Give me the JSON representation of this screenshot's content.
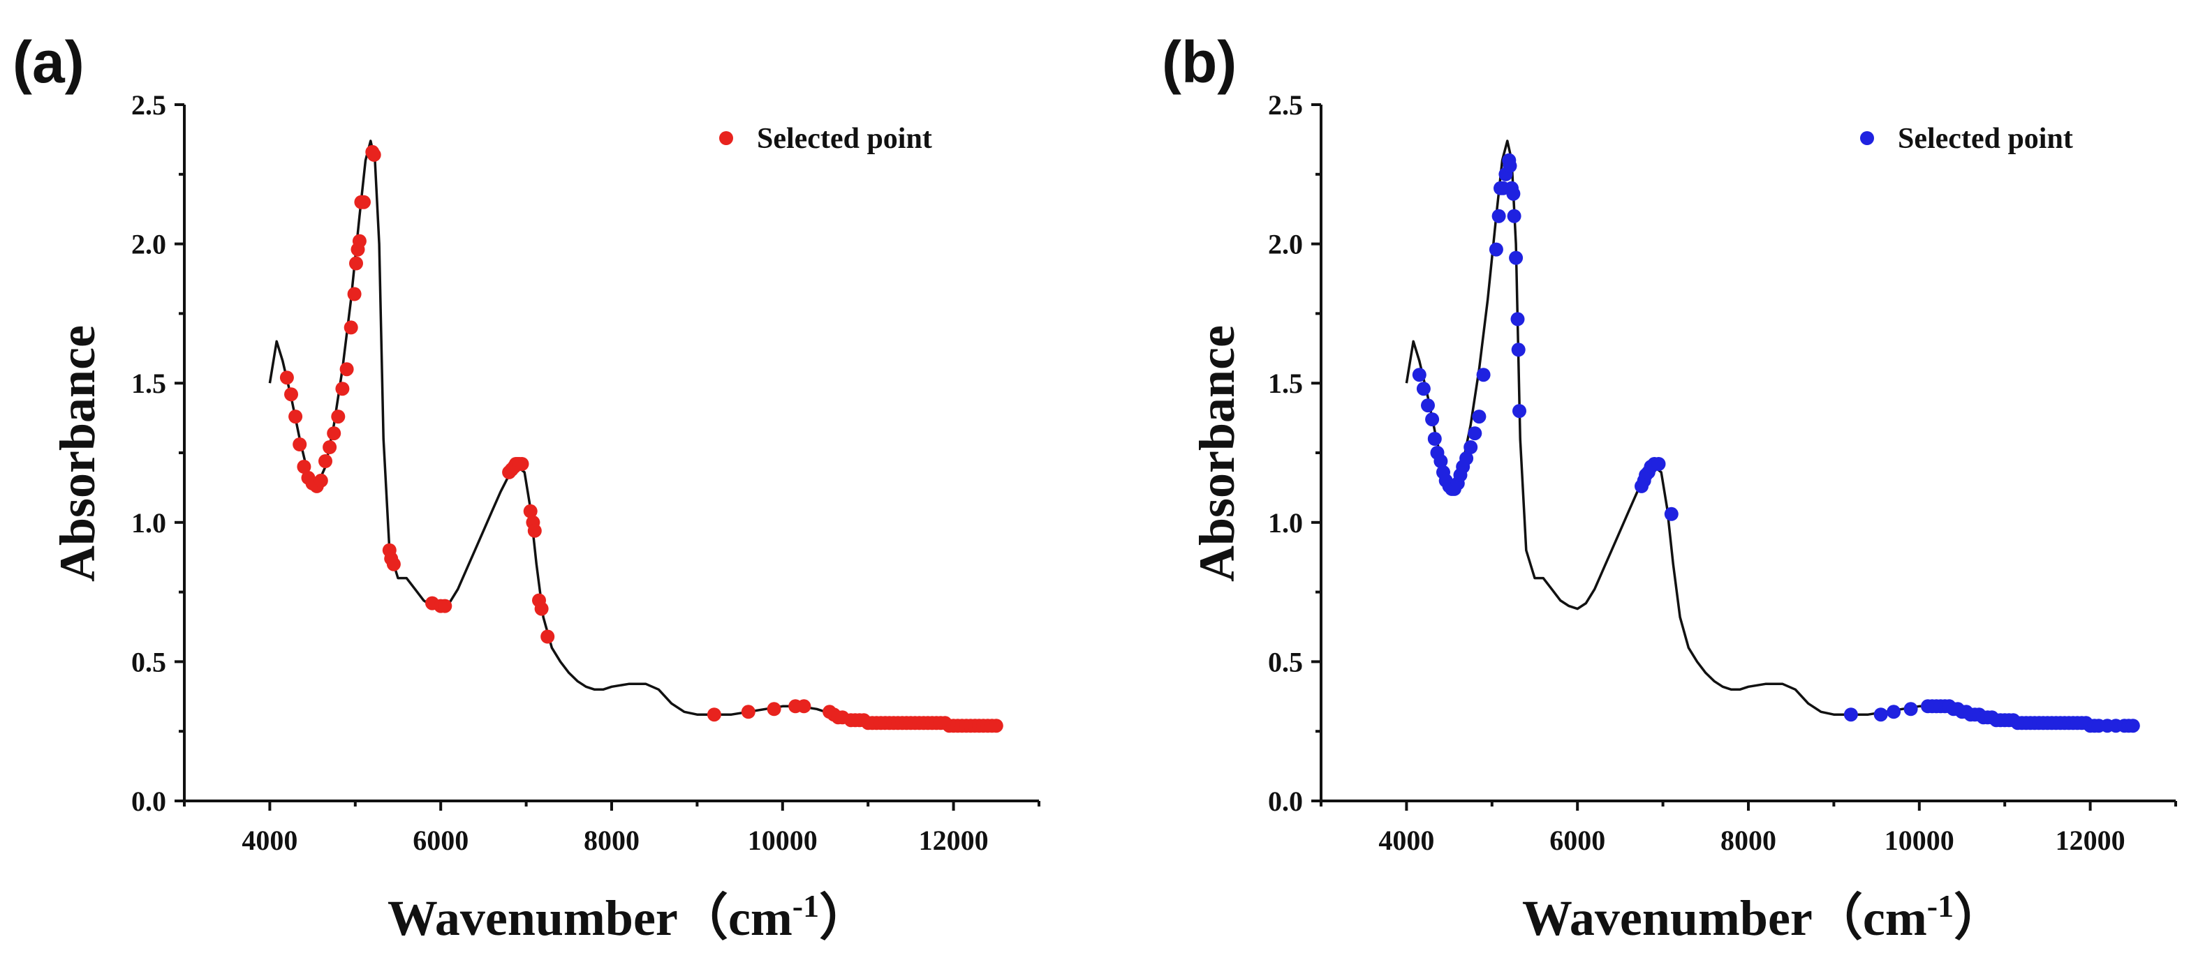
{
  "chart_data": [
    {
      "type": "scatter",
      "panel_label": "(a)",
      "xlabel": "Wavenumber（cm",
      "xlabel_sup": "-1",
      "xlabel_close": "）",
      "ylabel": "Absorbance",
      "xlim": [
        3000,
        13000
      ],
      "ylim": [
        0,
        2.5
      ],
      "xticks": [
        4000,
        6000,
        8000,
        10000,
        12000
      ],
      "yticks": [
        0.0,
        0.5,
        1.0,
        1.5,
        2.0,
        2.5
      ],
      "ytick_labels": [
        "0.0",
        "0.5",
        "1.0",
        "1.5",
        "2.0",
        "2.5"
      ],
      "legend": {
        "label": "Selected point",
        "position": "top-right",
        "color": "#e8231e"
      },
      "grid": false,
      "series": [
        {
          "type": "line",
          "color": "#111111",
          "x": [
            4000,
            4080,
            4150,
            4250,
            4350,
            4450,
            4550,
            4650,
            4750,
            4850,
            4950,
            5050,
            5120,
            5180,
            5230,
            5280,
            5330,
            5400,
            5500,
            5600,
            5700,
            5800,
            5900,
            6000,
            6100,
            6200,
            6300,
            6400,
            6500,
            6600,
            6700,
            6800,
            6900,
            6980,
            7050,
            7120,
            7200,
            7300,
            7400,
            7500,
            7600,
            7700,
            7800,
            7900,
            8000,
            8200,
            8400,
            8550,
            8700,
            8850,
            9000,
            9200,
            9400,
            9600,
            9800,
            10000,
            10200,
            10400,
            10600,
            10800,
            11000,
            11500,
            12000,
            12500
          ],
          "y": [
            1.5,
            1.65,
            1.58,
            1.45,
            1.3,
            1.17,
            1.13,
            1.2,
            1.35,
            1.55,
            1.8,
            2.1,
            2.3,
            2.37,
            2.3,
            2.0,
            1.3,
            0.9,
            0.8,
            0.8,
            0.76,
            0.72,
            0.7,
            0.69,
            0.71,
            0.76,
            0.83,
            0.9,
            0.97,
            1.04,
            1.11,
            1.17,
            1.2,
            1.18,
            1.05,
            0.85,
            0.66,
            0.55,
            0.5,
            0.46,
            0.43,
            0.41,
            0.4,
            0.4,
            0.41,
            0.42,
            0.42,
            0.4,
            0.35,
            0.32,
            0.31,
            0.31,
            0.31,
            0.32,
            0.33,
            0.34,
            0.34,
            0.33,
            0.31,
            0.3,
            0.29,
            0.28,
            0.27,
            0.27
          ]
        },
        {
          "type": "scatter",
          "name": "Selected point",
          "color": "#e8231e",
          "x": [
            4200,
            4250,
            4300,
            4350,
            4400,
            4450,
            4500,
            4550,
            4600,
            4650,
            4700,
            4750,
            4800,
            4850,
            4900,
            4950,
            4990,
            5010,
            5030,
            5050,
            5070,
            5100,
            5200,
            5220,
            5400,
            5420,
            5450,
            5900,
            6000,
            6050,
            6800,
            6830,
            6860,
            6880,
            6900,
            6920,
            6950,
            7050,
            7080,
            7100,
            7150,
            7180,
            7250,
            9200,
            9600,
            9900,
            10150,
            10250,
            10550,
            10600,
            10650,
            10700,
            10800,
            10850,
            10900,
            10950,
            11000,
            11050,
            11100,
            11150,
            11200,
            11250,
            11300,
            11350,
            11400,
            11450,
            11500,
            11550,
            11600,
            11650,
            11700,
            11750,
            11800,
            11850,
            11900,
            11950,
            12000,
            12050,
            12100,
            12150,
            12200,
            12250,
            12300,
            12350,
            12400,
            12450,
            12500
          ],
          "y": [
            1.52,
            1.46,
            1.38,
            1.28,
            1.2,
            1.16,
            1.14,
            1.13,
            1.15,
            1.22,
            1.27,
            1.32,
            1.38,
            1.48,
            1.55,
            1.7,
            1.82,
            1.93,
            1.98,
            2.01,
            2.15,
            2.15,
            2.33,
            2.32,
            0.9,
            0.87,
            0.85,
            0.71,
            0.7,
            0.7,
            1.18,
            1.19,
            1.2,
            1.21,
            1.21,
            1.21,
            1.21,
            1.04,
            1.0,
            0.97,
            0.72,
            0.69,
            0.59,
            0.31,
            0.32,
            0.33,
            0.34,
            0.34,
            0.32,
            0.31,
            0.3,
            0.3,
            0.29,
            0.29,
            0.29,
            0.29,
            0.28,
            0.28,
            0.28,
            0.28,
            0.28,
            0.28,
            0.28,
            0.28,
            0.28,
            0.28,
            0.28,
            0.28,
            0.28,
            0.28,
            0.28,
            0.28,
            0.28,
            0.28,
            0.28,
            0.27,
            0.27,
            0.27,
            0.27,
            0.27,
            0.27,
            0.27,
            0.27,
            0.27,
            0.27,
            0.27,
            0.27
          ]
        }
      ]
    },
    {
      "type": "scatter",
      "panel_label": "(b)",
      "xlabel": "Wavenumber（cm",
      "xlabel_sup": "-1",
      "xlabel_close": "）",
      "ylabel": "Absorbance",
      "xlim": [
        3000,
        13000
      ],
      "ylim": [
        0,
        2.5
      ],
      "xticks": [
        4000,
        6000,
        8000,
        10000,
        12000
      ],
      "yticks": [
        0.0,
        0.5,
        1.0,
        1.5,
        2.0,
        2.5
      ],
      "ytick_labels": [
        "0.0",
        "0.5",
        "1.0",
        "1.5",
        "2.0",
        "2.5"
      ],
      "legend": {
        "label": "Selected point",
        "position": "top-right",
        "color": "#1f22e0"
      },
      "grid": false,
      "series": [
        {
          "type": "line",
          "color": "#111111",
          "x": [
            4000,
            4080,
            4150,
            4250,
            4350,
            4450,
            4550,
            4650,
            4750,
            4850,
            4950,
            5050,
            5120,
            5180,
            5230,
            5280,
            5330,
            5400,
            5500,
            5600,
            5700,
            5800,
            5900,
            6000,
            6100,
            6200,
            6300,
            6400,
            6500,
            6600,
            6700,
            6800,
            6900,
            6980,
            7050,
            7120,
            7200,
            7300,
            7400,
            7500,
            7600,
            7700,
            7800,
            7900,
            8000,
            8200,
            8400,
            8550,
            8700,
            8850,
            9000,
            9200,
            9400,
            9600,
            9800,
            10000,
            10200,
            10400,
            10600,
            10800,
            11000,
            11500,
            12000,
            12500
          ],
          "y": [
            1.5,
            1.65,
            1.58,
            1.45,
            1.3,
            1.17,
            1.13,
            1.2,
            1.35,
            1.55,
            1.8,
            2.1,
            2.3,
            2.37,
            2.3,
            2.0,
            1.3,
            0.9,
            0.8,
            0.8,
            0.76,
            0.72,
            0.7,
            0.69,
            0.71,
            0.76,
            0.83,
            0.9,
            0.97,
            1.04,
            1.11,
            1.17,
            1.2,
            1.18,
            1.05,
            0.85,
            0.66,
            0.55,
            0.5,
            0.46,
            0.43,
            0.41,
            0.4,
            0.4,
            0.41,
            0.42,
            0.42,
            0.4,
            0.35,
            0.32,
            0.31,
            0.31,
            0.31,
            0.32,
            0.33,
            0.34,
            0.34,
            0.33,
            0.31,
            0.3,
            0.29,
            0.28,
            0.27,
            0.27
          ]
        },
        {
          "type": "scatter",
          "name": "Selected point",
          "color": "#1f22e0",
          "x": [
            4150,
            4200,
            4250,
            4300,
            4330,
            4360,
            4400,
            4430,
            4460,
            4500,
            4530,
            4560,
            4600,
            4630,
            4660,
            4700,
            4750,
            4800,
            4850,
            4900,
            5050,
            5080,
            5100,
            5130,
            5160,
            5200,
            5210,
            5230,
            5250,
            5260,
            5280,
            5300,
            5310,
            5320,
            6750,
            6780,
            6800,
            6830,
            6860,
            6900,
            6950,
            7100,
            9200,
            9550,
            9700,
            9900,
            10100,
            10150,
            10200,
            10250,
            10300,
            10350,
            10400,
            10450,
            10500,
            10550,
            10600,
            10650,
            10700,
            10750,
            10800,
            10850,
            10900,
            10950,
            11000,
            11050,
            11100,
            11150,
            11200,
            11250,
            11300,
            11350,
            11400,
            11450,
            11500,
            11550,
            11600,
            11650,
            11700,
            11750,
            11800,
            11850,
            11900,
            11950,
            12000,
            12050,
            12100,
            12200,
            12300,
            12400,
            12450,
            12500
          ],
          "y": [
            1.53,
            1.48,
            1.42,
            1.37,
            1.3,
            1.25,
            1.22,
            1.18,
            1.15,
            1.13,
            1.12,
            1.12,
            1.14,
            1.17,
            1.2,
            1.23,
            1.27,
            1.32,
            1.38,
            1.53,
            1.98,
            2.1,
            2.2,
            2.2,
            2.25,
            2.3,
            2.28,
            2.2,
            2.18,
            2.1,
            1.95,
            1.73,
            1.62,
            1.4,
            1.13,
            1.15,
            1.17,
            1.18,
            1.2,
            1.21,
            1.21,
            1.03,
            0.31,
            0.31,
            0.32,
            0.33,
            0.34,
            0.34,
            0.34,
            0.34,
            0.34,
            0.34,
            0.33,
            0.33,
            0.32,
            0.32,
            0.31,
            0.31,
            0.31,
            0.3,
            0.3,
            0.3,
            0.29,
            0.29,
            0.29,
            0.29,
            0.29,
            0.28,
            0.28,
            0.28,
            0.28,
            0.28,
            0.28,
            0.28,
            0.28,
            0.28,
            0.28,
            0.28,
            0.28,
            0.28,
            0.28,
            0.28,
            0.28,
            0.28,
            0.27,
            0.27,
            0.27,
            0.27,
            0.27,
            0.27,
            0.27,
            0.27
          ]
        }
      ]
    }
  ]
}
